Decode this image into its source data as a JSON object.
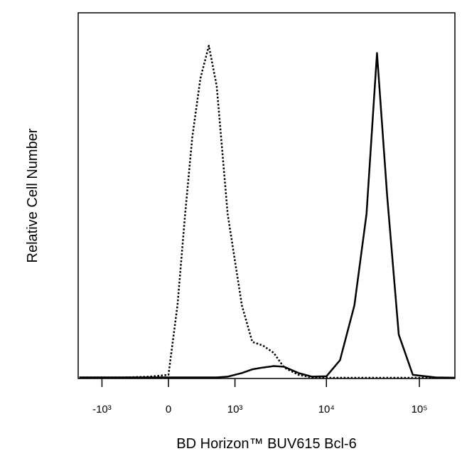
{
  "chart_data": {
    "type": "line",
    "xlabel": "BD Horizon™ BUV615 Bcl-6",
    "ylabel": "Relative Cell Number",
    "x": [
      -1800,
      -1000,
      -500,
      -200,
      0,
      90,
      170,
      250,
      350,
      470,
      600,
      820,
      1200,
      1570,
      2060,
      2700,
      3500,
      5000,
      7000,
      10000,
      14000,
      20000,
      27000,
      35000,
      45000,
      60000,
      85000,
      150000,
      240000
    ],
    "series": [
      {
        "color": "#000000",
        "dash": "dotted",
        "values": [
          0.3,
          0.3,
          0.3,
          0.5,
          1,
          20,
          45,
          66,
          82,
          91,
          80,
          45,
          20,
          10,
          9,
          7,
          3,
          1,
          0.3,
          0.2,
          0.2,
          0.2,
          0.2,
          0.2,
          0.2,
          0.2,
          0.2,
          0.2,
          0.2
        ]
      },
      {
        "color": "#000000",
        "dash": "solid",
        "values": [
          0.3,
          0.3,
          0.3,
          0.3,
          0.3,
          0.3,
          0.3,
          0.3,
          0.3,
          0.3,
          0.3,
          0.5,
          1.5,
          2.5,
          3,
          3.4,
          3.2,
          1.5,
          0.5,
          0.6,
          5,
          20,
          45,
          89,
          50,
          12,
          1,
          0.3,
          0.2
        ]
      }
    ],
    "xscale": "biexponential",
    "xlim": [
      -1850,
      241000
    ],
    "xticks": [
      {
        "value": -1000,
        "label": "-10³"
      },
      0,
      {
        "value": 1000,
        "label": "10³"
      },
      {
        "value": 10000,
        "label": "10⁴"
      },
      {
        "value": 100000,
        "label": "10⁵"
      }
    ],
    "ylim": [
      0,
      100
    ]
  }
}
